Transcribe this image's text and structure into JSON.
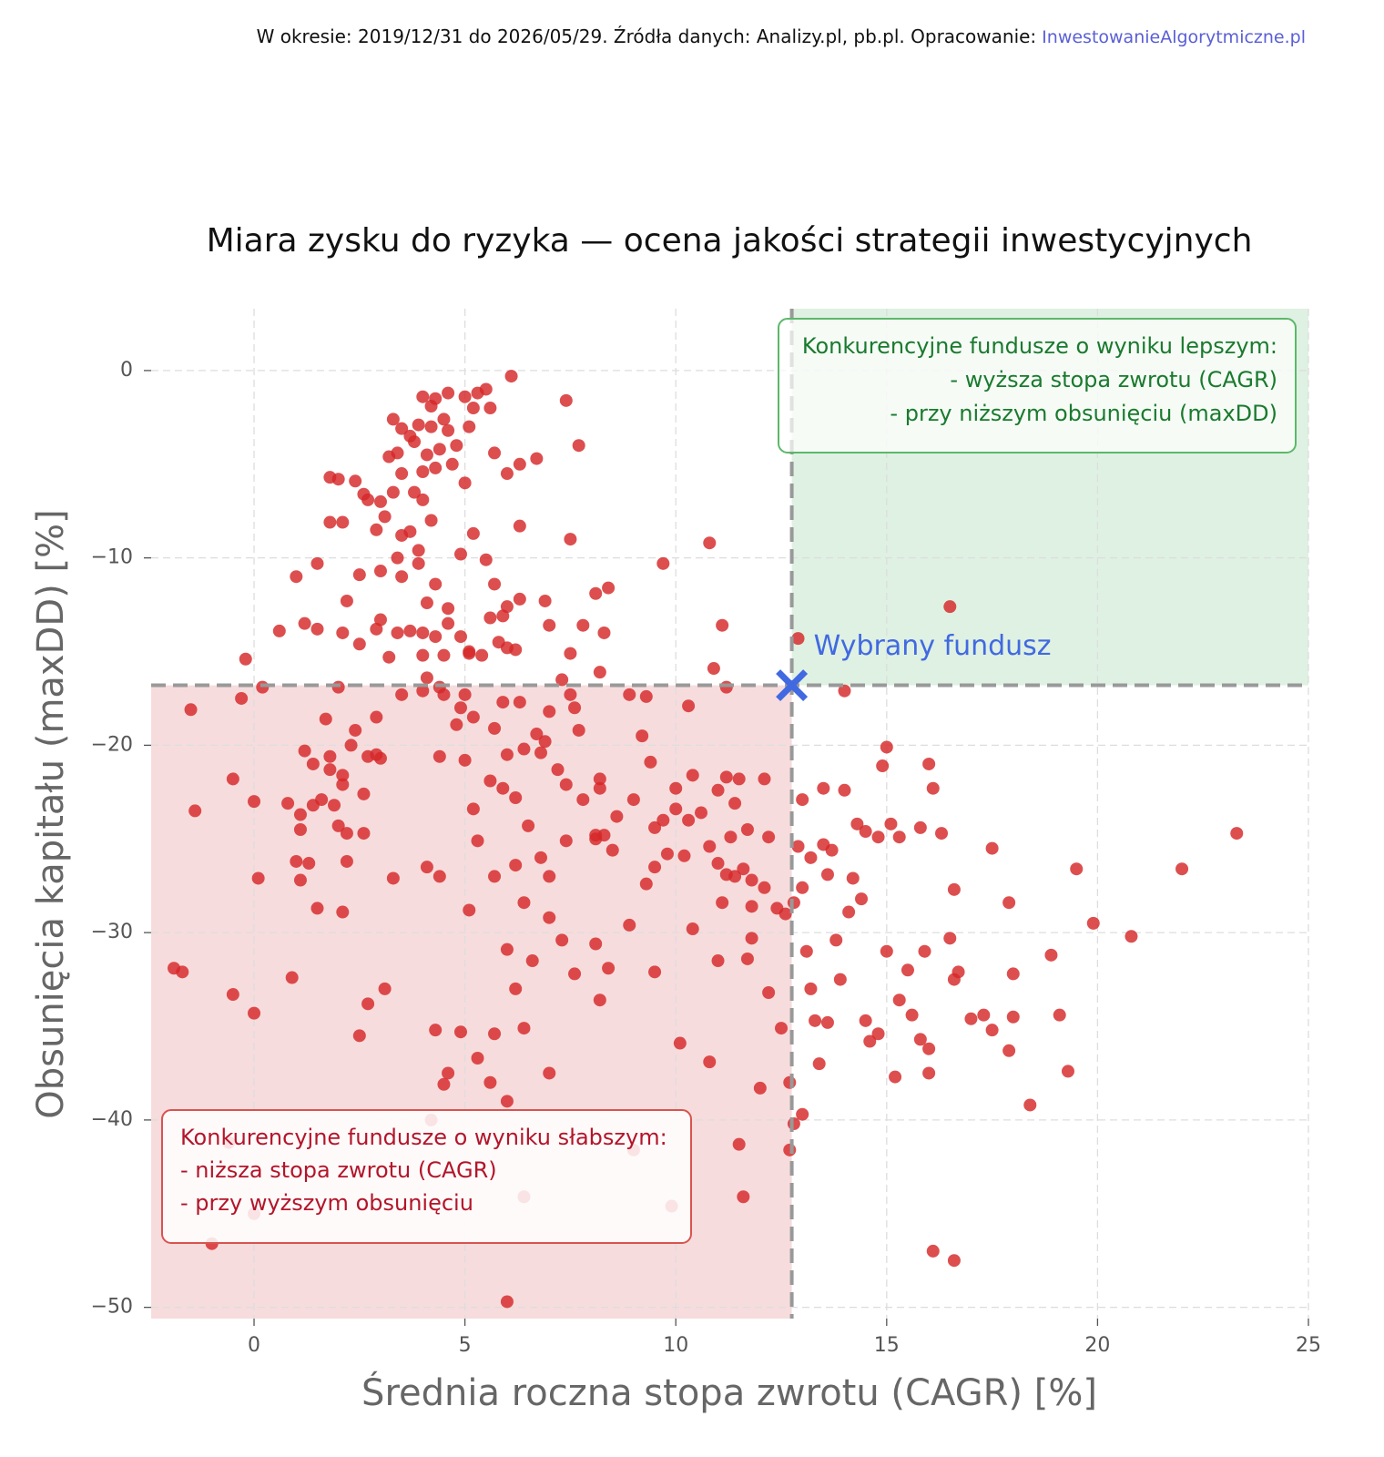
{
  "source": {
    "text": "W okresie: 2019/12/31 do 2026/05/29. Źródła danych: Analizy.pl, pb.pl. Opracowanie:",
    "link": "InwestowanieAlgorytmiczne.pl"
  },
  "chart_data": {
    "type": "scatter",
    "title": "Miara zysku do ryzyka — ocena jakości strategii inwestycyjnych",
    "x_label": "Średnia roczna stopa zwrotu (CAGR) [%]",
    "y_label": "Obsunięcia kapitału (maxDD) [%]",
    "color": "#d62728",
    "xlim": [
      -2.44,
      25
    ],
    "ylim": [
      -50.6,
      3.3
    ],
    "xticks": [
      0,
      5,
      10,
      15,
      20,
      25
    ],
    "yticks": [
      0,
      {
        "value": -10,
        "label": "−10"
      },
      {
        "value": -20,
        "label": "−20"
      },
      {
        "value": -30,
        "label": "−30"
      },
      {
        "value": -40,
        "label": "−40"
      },
      {
        "value": -50,
        "label": "−50"
      }
    ],
    "grid": true,
    "selected": {
      "label": "Wybrany fundusz",
      "x": 12.75,
      "y": -16.8,
      "color": "#4169e1"
    },
    "better_box": {
      "lines": [
        "Konkurencyjne fundusze o wyniku lepszym:",
        "- wyższa stopa zwrotu (CAGR)",
        "- przy niższym obsunięciu (maxDD)"
      ],
      "color": "#1a7a2e"
    },
    "worse_box": {
      "lines": [
        "Konkurencyjne fundusze o wyniku słabszym:",
        "- niższa stopa zwrotu (CAGR)",
        "- przy wyższym obsunięciu"
      ],
      "color": "#b3152a"
    },
    "x": [
      4.0,
      4.3,
      4.6,
      5.0,
      5.3,
      5.5,
      5.2,
      5.6,
      4.2,
      3.3,
      3.5,
      3.7,
      3.9,
      4.2,
      4.5,
      4.6,
      4.8,
      4.4,
      4.1,
      3.8,
      3.4,
      3.2,
      3.5,
      4.0,
      4.3,
      4.7,
      5.0,
      5.1,
      5.7,
      6.0,
      6.3,
      6.7,
      7.4,
      7.7,
      6.1,
      3.3,
      3.0,
      2.7,
      2.6,
      2.4,
      1.8,
      2.0,
      1.8,
      2.1,
      2.9,
      3.1,
      3.5,
      3.7,
      4.2,
      3.9,
      3.4,
      4.0,
      3.8,
      5.2,
      4.9,
      5.5,
      6.3,
      7.5,
      9.7,
      10.8,
      1.0,
      1.5,
      2.5,
      3.0,
      3.5,
      3.9,
      4.3,
      5.7,
      6.3,
      6.0,
      4.1,
      4.6,
      6.9,
      8.1,
      8.4,
      2.2,
      0.6,
      1.2,
      1.5,
      2.1,
      2.5,
      2.9,
      3.0,
      3.4,
      3.7,
      4.0,
      4.3,
      4.6,
      4.9,
      5.1,
      5.6,
      5.9,
      6.2,
      6.0,
      5.8,
      5.4,
      7.0,
      7.8,
      8.3,
      7.5,
      11.1,
      10.9,
      -0.2,
      3.2,
      4.0,
      4.5,
      5.1,
      8.2,
      7.3,
      12.9,
      16.5,
      4.1,
      4.4,
      11.2,
      -0.3,
      0.2,
      -1.5,
      2.0,
      2.9,
      3.5,
      4.0,
      4.5,
      4.9,
      5.0,
      4.8,
      5.2,
      5.7,
      5.9,
      6.3,
      7.0,
      7.5,
      7.6,
      8.9,
      9.3,
      10.3,
      6.7,
      6.9,
      7.7,
      9.2,
      1.7,
      2.3,
      2.4,
      1.2,
      1.8,
      2.1,
      2.7,
      2.9,
      3.0,
      4.4,
      5.0,
      6.0,
      6.4,
      6.8,
      7.2,
      8.2,
      9.4,
      10.0,
      10.4,
      11.2,
      11.5,
      12.1,
      -0.5,
      1.4,
      1.8,
      2.1,
      2.6,
      5.6,
      5.9,
      6.2,
      7.4,
      7.8,
      8.2,
      9.0,
      8.6,
      9.5,
      9.7,
      10.0,
      10.3,
      10.6,
      11.0,
      11.4,
      0.8,
      1.1,
      1.4,
      1.6,
      1.9,
      2.0,
      2.2,
      2.6,
      1.1,
      5.2,
      6.5,
      8.1,
      8.3,
      11.3,
      11.7,
      12.2,
      13.0,
      13.5,
      14.0,
      14.3,
      14.5,
      14.8,
      15.1,
      15.3,
      15.8,
      16.0,
      16.1,
      15.0,
      14.9,
      16.3,
      -1.4,
      0.0,
      14.0,
      0.1,
      1.0,
      1.3,
      1.1,
      1.5,
      2.2,
      2.1,
      3.3,
      4.1,
      4.4,
      5.1,
      5.7,
      5.3,
      6.2,
      6.4,
      6.8,
      7.0,
      7.0,
      7.4,
      8.1,
      8.5,
      8.9,
      9.3,
      9.5,
      9.8,
      10.2,
      10.8,
      11.0,
      11.2,
      11.4,
      11.6,
      11.8,
      11.1,
      11.8,
      12.1,
      12.4,
      12.6,
      12.8,
      13.0,
      12.9,
      13.2,
      13.5,
      13.7,
      13.6,
      14.2,
      14.4,
      14.1,
      15.0,
      15.5,
      15.9,
      16.5,
      16.6,
      16.7,
      17.0,
      17.3,
      17.5,
      17.9,
      18.0,
      18.9,
      19.5,
      19.9,
      20.8,
      22.0,
      23.3,
      16.6,
      -1.9,
      -1.7,
      -0.5,
      0.0,
      0.9,
      2.7,
      3.1,
      6.0,
      6.2,
      6.6,
      7.3,
      7.6,
      8.1,
      8.4,
      8.2,
      9.5,
      10.4,
      11.0,
      11.7,
      11.8,
      12.2,
      12.5,
      13.1,
      13.2,
      13.3,
      13.6,
      13.9,
      13.8,
      14.5,
      14.8,
      15.3,
      15.6,
      15.8,
      16.0,
      17.5,
      17.9,
      18.0,
      19.1,
      19.3,
      2.5,
      4.3,
      4.9,
      5.7,
      6.4,
      4.5,
      4.6,
      5.3,
      5.6,
      6.0,
      7.0,
      10.1,
      10.8,
      12.0,
      12.7,
      13.0,
      13.4,
      14.6,
      15.2,
      16.0,
      18.4,
      11.5,
      11.6,
      12.7,
      12.8,
      16.1,
      16.6,
      6.0,
      -1.0,
      0.0,
      4.2,
      6.4,
      9.9,
      9.0,
      -0.6
    ],
    "values": [
      -1.4,
      -1.5,
      -1.2,
      -1.4,
      -1.2,
      -1.0,
      -2.0,
      -2.0,
      -1.9,
      -2.6,
      -3.1,
      -3.5,
      -2.9,
      -3.0,
      -2.6,
      -3.2,
      -4.0,
      -4.2,
      -4.5,
      -3.8,
      -4.4,
      -4.6,
      -5.5,
      -5.4,
      -5.2,
      -5.0,
      -6.0,
      -3.0,
      -4.4,
      -5.5,
      -5.0,
      -4.7,
      -1.6,
      -4.0,
      -0.3,
      -6.5,
      -7.0,
      -6.9,
      -6.6,
      -5.9,
      -5.7,
      -5.8,
      -8.1,
      -8.1,
      -8.5,
      -7.8,
      -8.8,
      -8.6,
      -8.0,
      -9.6,
      -10.0,
      -6.9,
      -6.5,
      -8.7,
      -9.8,
      -10.1,
      -8.3,
      -9.0,
      -10.3,
      -9.2,
      -11.0,
      -10.3,
      -10.9,
      -10.7,
      -11.0,
      -10.3,
      -11.4,
      -11.4,
      -12.2,
      -12.6,
      -12.4,
      -12.7,
      -12.3,
      -11.9,
      -11.6,
      -12.3,
      -13.9,
      -13.5,
      -13.8,
      -14.0,
      -14.6,
      -13.8,
      -13.3,
      -14.0,
      -13.9,
      -14.0,
      -14.2,
      -13.5,
      -14.2,
      -15.0,
      -13.2,
      -13.1,
      -14.9,
      -14.8,
      -14.5,
      -15.2,
      -13.6,
      -13.6,
      -14.0,
      -15.1,
      -13.6,
      -15.9,
      -15.4,
      -15.3,
      -15.2,
      -15.2,
      -15.1,
      -16.1,
      -16.5,
      -14.3,
      -12.6,
      -16.4,
      -16.9,
      -16.9,
      -17.5,
      -16.9,
      -18.1,
      -16.9,
      -18.5,
      -17.3,
      -17.1,
      -17.3,
      -18.0,
      -17.3,
      -18.9,
      -18.5,
      -19.1,
      -17.7,
      -17.7,
      -18.2,
      -17.3,
      -18.0,
      -17.3,
      -17.4,
      -17.9,
      -19.4,
      -19.8,
      -19.2,
      -19.5,
      -18.6,
      -20.0,
      -19.2,
      -20.3,
      -20.6,
      -21.6,
      -20.6,
      -20.5,
      -20.7,
      -20.6,
      -20.8,
      -20.5,
      -20.2,
      -20.4,
      -21.3,
      -21.8,
      -20.9,
      -22.3,
      -21.6,
      -21.7,
      -21.8,
      -21.8,
      -21.8,
      -21.0,
      -21.3,
      -22.1,
      -22.6,
      -21.9,
      -22.3,
      -22.8,
      -22.1,
      -22.9,
      -22.3,
      -22.9,
      -23.8,
      -24.4,
      -24.0,
      -23.4,
      -24.0,
      -23.6,
      -22.4,
      -23.1,
      -23.1,
      -23.7,
      -23.2,
      -22.9,
      -23.2,
      -24.3,
      -24.7,
      -24.7,
      -24.5,
      -23.4,
      -24.3,
      -24.8,
      -24.8,
      -24.9,
      -24.5,
      -24.9,
      -22.9,
      -22.3,
      -22.4,
      -24.2,
      -24.6,
      -24.9,
      -24.2,
      -24.9,
      -24.4,
      -21.0,
      -22.3,
      -20.1,
      -21.1,
      -24.7,
      -23.5,
      -23.0,
      -17.1,
      -27.1,
      -26.2,
      -26.3,
      -27.2,
      -28.7,
      -26.2,
      -28.9,
      -27.1,
      -26.5,
      -27.0,
      -28.8,
      -27.0,
      -25.1,
      -26.4,
      -28.4,
      -26.0,
      -27.0,
      -29.2,
      -25.1,
      -25.0,
      -25.6,
      -29.6,
      -27.4,
      -26.5,
      -25.8,
      -25.9,
      -25.4,
      -26.3,
      -26.9,
      -27.0,
      -26.6,
      -27.2,
      -28.4,
      -28.6,
      -27.6,
      -28.7,
      -29.0,
      -28.4,
      -27.6,
      -25.4,
      -26.0,
      -25.3,
      -25.6,
      -26.9,
      -27.1,
      -28.2,
      -28.9,
      -31.0,
      -32.0,
      -31.0,
      -30.3,
      -32.5,
      -32.1,
      -34.6,
      -34.4,
      -25.5,
      -28.4,
      -32.2,
      -31.2,
      -26.6,
      -29.5,
      -30.2,
      -26.6,
      -24.7,
      -27.7,
      -31.9,
      -32.1,
      -33.3,
      -34.3,
      -32.4,
      -33.8,
      -33.0,
      -30.9,
      -33.0,
      -31.5,
      -30.4,
      -32.2,
      -30.6,
      -31.9,
      -33.6,
      -32.1,
      -29.8,
      -31.5,
      -31.4,
      -30.3,
      -33.2,
      -35.1,
      -31.0,
      -33.0,
      -34.7,
      -34.8,
      -32.5,
      -30.4,
      -34.7,
      -35.4,
      -33.6,
      -34.4,
      -35.7,
      -36.2,
      -35.2,
      -36.3,
      -34.5,
      -34.4,
      -37.4,
      -35.5,
      -35.2,
      -35.3,
      -35.4,
      -35.1,
      -38.1,
      -37.5,
      -36.7,
      -38.0,
      -39.0,
      -37.5,
      -35.9,
      -36.9,
      -38.3,
      -38.0,
      -39.7,
      -37.0,
      -35.8,
      -37.7,
      -37.5,
      -39.2,
      -41.3,
      -44.1,
      -41.6,
      -40.2,
      -47.0,
      -47.5,
      -49.7,
      -46.6,
      -45.0,
      -40.0,
      -44.1,
      -44.6,
      -41.6,
      -41.2
    ]
  }
}
